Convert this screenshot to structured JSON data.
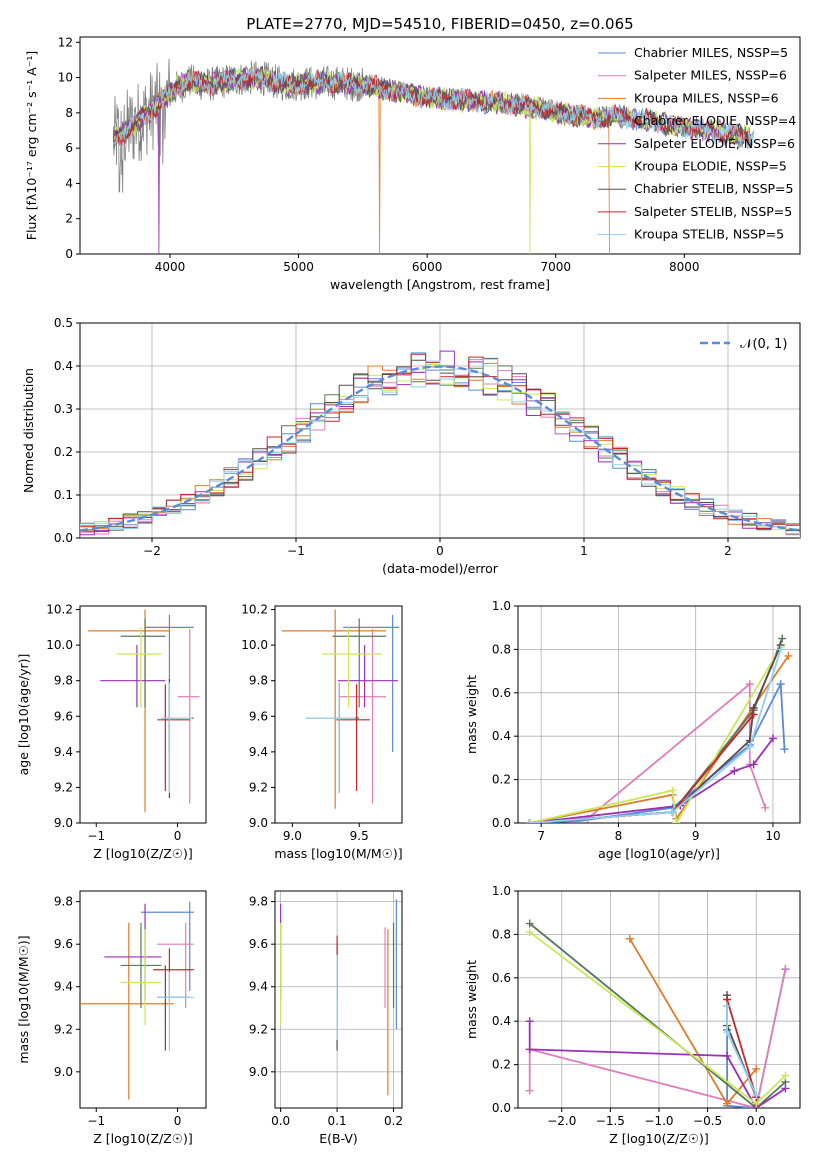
{
  "colors": [
    "#5b8ad8",
    "#e07eb8",
    "#e07b2a",
    "#56785b",
    "#9a2fb8",
    "#c8e85a",
    "#5a4a4a",
    "#c4262b",
    "#8fd0ee"
  ],
  "top_spectrum": {
    "title": "PLATE=2770, MJD=54510, FIBERID=0450, z=0.065",
    "xlabel": "wavelength [Angstrom, rest frame]",
    "ylabel": "Flux [fλ10⁻¹⁷ erg cm⁻² s⁻¹ A⁻¹]",
    "legend": [
      "Chabrier MILES, NSSP=5",
      "Salpeter MILES, NSSP=6",
      "Kroupa MILES, NSSP=6",
      "Chabrier ELODIE, NSSP=4",
      "Salpeter ELODIE, NSSP=6",
      "Kroupa ELODIE, NSSP=5",
      "Chabrier STELIB, NSSP=5",
      "Salpeter STELIB, NSSP=5",
      "Kroupa STELIB, NSSP=5"
    ]
  },
  "chart_data": [
    {
      "type": "line",
      "title": "PLATE=2770, MJD=54510, FIBERID=0450, z=0.065",
      "xlabel": "wavelength [Angstrom, rest frame]",
      "ylabel": "Flux [fλ10⁻¹⁷ erg cm⁻² s⁻¹ A⁻¹]",
      "xlim": [
        3300,
        8900
      ],
      "ylim": [
        0,
        12.3
      ],
      "xticks": [
        4000,
        5000,
        6000,
        7000,
        8000
      ],
      "yticks": [
        0,
        2,
        4,
        6,
        8,
        10,
        12
      ],
      "continuum": {
        "x": [
          3560,
          3700,
          3850,
          3950,
          4050,
          4150,
          4300,
          4500,
          4700,
          4900,
          5100,
          5300,
          5500,
          5700,
          5900,
          6100,
          6300,
          6500,
          6700,
          6900,
          7100,
          7300,
          7500,
          7700,
          7900,
          8100,
          8300,
          8500
        ],
        "y": [
          6.5,
          7.2,
          8.1,
          8.8,
          9.4,
          9.8,
          9.6,
          9.9,
          10.0,
          9.6,
          9.7,
          9.7,
          9.6,
          9.3,
          9.0,
          8.8,
          8.7,
          8.6,
          8.5,
          8.2,
          7.9,
          7.7,
          7.8,
          7.6,
          7.3,
          7.1,
          6.9,
          6.6
        ]
      },
      "grid": false,
      "legend_position": "upper-right"
    },
    {
      "type": "step",
      "xlabel": "(data-model)/error",
      "ylabel": "Normed distribution",
      "xlim": [
        -2.5,
        2.5
      ],
      "ylim": [
        0,
        0.5
      ],
      "xticks": [
        -2,
        -1,
        0,
        1,
        2
      ],
      "yticks": [
        0.0,
        0.1,
        0.2,
        0.3,
        0.4,
        0.5
      ],
      "grid": true,
      "legend": "𝒩(0, 1)",
      "legend_position": "upper-right",
      "bin_width": 0.1
    },
    {
      "type": "errorbar",
      "xlabel": "Z [log10(Z/Z☉)]",
      "ylabel": "age  [log10(age/yr)]",
      "xlim": [
        -1.2,
        0.35
      ],
      "ylim": [
        9.0,
        10.22
      ],
      "xticks": [
        -1,
        0
      ],
      "yticks": [
        9.0,
        9.2,
        9.4,
        9.6,
        9.8,
        10.0,
        10.2
      ],
      "points": [
        {
          "x": -0.1,
          "y": 10.1,
          "xerr": [
            0.3,
            0.3
          ],
          "yerr": [
            0.7,
            0.07
          ]
        },
        {
          "x": 0.15,
          "y": 9.71,
          "xerr": [
            0.15,
            0.12
          ],
          "yerr": [
            0.6,
            0.38
          ]
        },
        {
          "x": -0.4,
          "y": 10.08,
          "xerr": [
            0.7,
            0.3
          ],
          "yerr": [
            1.02,
            0.12
          ]
        },
        {
          "x": -0.4,
          "y": 10.05,
          "xerr": [
            0.3,
            0.25
          ],
          "yerr": [
            0.4,
            0.1
          ]
        },
        {
          "x": -0.5,
          "y": 9.8,
          "xerr": [
            0.45,
            0.35
          ],
          "yerr": [
            0.15,
            0.2
          ]
        },
        {
          "x": -0.45,
          "y": 9.95,
          "xerr": [
            0.3,
            0.25
          ],
          "yerr": [
            0.3,
            0.15
          ]
        },
        {
          "x": -0.1,
          "y": 9.59,
          "xerr": [
            0.1,
            0.3
          ],
          "yerr": [
            0.45,
            0.22
          ]
        },
        {
          "x": -0.15,
          "y": 9.58,
          "xerr": [
            0.1,
            0.3
          ],
          "yerr": [
            0.4,
            0.2
          ]
        },
        {
          "x": -0.1,
          "y": 9.59,
          "xerr": [
            0.1,
            0.28
          ],
          "yerr": [
            0.42,
            0.2
          ]
        }
      ]
    },
    {
      "type": "errorbar",
      "xlabel": "mass [log10(M/M☉)]",
      "ylabel": "",
      "xlim": [
        8.87,
        9.82
      ],
      "ylim": [
        9.0,
        10.22
      ],
      "xticks": [
        9.0,
        9.5
      ],
      "yticks": [
        9.0,
        9.2,
        9.4,
        9.6,
        9.8,
        10.0,
        10.2
      ],
      "points": [
        {
          "x": 9.75,
          "y": 10.1,
          "xerr": [
            0.37,
            0.05
          ],
          "yerr": [
            0.7,
            0.07
          ]
        },
        {
          "x": 9.6,
          "y": 9.71,
          "xerr": [
            0.25,
            0.1
          ],
          "yerr": [
            0.6,
            0.38
          ]
        },
        {
          "x": 9.32,
          "y": 10.08,
          "xerr": [
            0.4,
            0.38
          ],
          "yerr": [
            1.0,
            0.12
          ]
        },
        {
          "x": 9.5,
          "y": 10.05,
          "xerr": [
            0.2,
            0.2
          ],
          "yerr": [
            0.4,
            0.1
          ]
        },
        {
          "x": 9.54,
          "y": 9.8,
          "xerr": [
            0.2,
            0.25
          ],
          "yerr": [
            0.15,
            0.2
          ]
        },
        {
          "x": 9.42,
          "y": 9.95,
          "xerr": [
            0.2,
            0.25
          ],
          "yerr": [
            0.3,
            0.15
          ]
        },
        {
          "x": 9.35,
          "y": 9.59,
          "xerr": [
            0.25,
            0.15
          ],
          "yerr": [
            0.42,
            0.2
          ]
        },
        {
          "x": 9.48,
          "y": 9.58,
          "xerr": [
            0.15,
            0.1
          ],
          "yerr": [
            0.4,
            0.2
          ]
        },
        {
          "x": 9.35,
          "y": 9.59,
          "xerr": [
            0.25,
            0.12
          ],
          "yerr": [
            0.42,
            0.2
          ]
        }
      ]
    },
    {
      "type": "line",
      "xlabel": "age  [log10(age/yr)]",
      "ylabel": "mass weight",
      "xlim": [
        6.7,
        10.35
      ],
      "ylim": [
        0,
        1.0
      ],
      "xticks": [
        7,
        8,
        9,
        10
      ],
      "yticks": [
        0.0,
        0.2,
        0.4,
        0.6,
        0.8,
        1.0
      ],
      "grid": true,
      "series": [
        {
          "x": [
            6.85,
            7.5,
            8.7,
            9.7,
            10.1,
            10.15
          ],
          "y": [
            0.0,
            0.01,
            0.07,
            0.36,
            0.64,
            0.34
          ]
        },
        {
          "x": [
            6.85,
            7.6,
            9.7,
            9.7,
            9.9
          ],
          "y": [
            0.0,
            0.02,
            0.64,
            0.27,
            0.07
          ]
        },
        {
          "x": [
            6.85,
            8.7,
            8.75,
            10.2
          ],
          "y": [
            0.0,
            0.13,
            0.02,
            0.77
          ]
        },
        {
          "x": [
            6.85,
            8.7,
            9.75,
            10.12
          ],
          "y": [
            0.0,
            0.05,
            0.52,
            0.85
          ]
        },
        {
          "x": [
            6.85,
            8.8,
            9.5,
            9.75,
            10.0
          ],
          "y": [
            0.0,
            0.08,
            0.24,
            0.27,
            0.39
          ]
        },
        {
          "x": [
            6.85,
            8.7,
            8.75,
            10.1
          ],
          "y": [
            0.0,
            0.15,
            0.0,
            0.81
          ]
        },
        {
          "x": [
            6.85,
            8.7,
            9.7,
            9.75,
            10.1
          ],
          "y": [
            0.0,
            0.05,
            0.38,
            0.53,
            0.82
          ]
        },
        {
          "x": [
            6.85,
            8.7,
            9.75
          ],
          "y": [
            0.0,
            0.05,
            0.5
          ]
        },
        {
          "x": [
            6.85,
            8.7,
            9.7,
            10.1
          ],
          "y": [
            0.0,
            0.05,
            0.35,
            0.8
          ]
        }
      ]
    },
    {
      "type": "errorbar",
      "xlabel": "Z [log10(Z/Z☉)]",
      "ylabel": "mass [log10(M/M☉)]",
      "xlim": [
        -1.2,
        0.35
      ],
      "ylim": [
        8.83,
        9.85
      ],
      "xticks": [
        -1,
        0
      ],
      "yticks": [
        9.0,
        9.2,
        9.4,
        9.6,
        9.8
      ],
      "points": [
        {
          "x": 0.15,
          "y": 9.75,
          "xerr": [
            0.6,
            0.05
          ],
          "yerr": [
            0.37,
            0.05
          ]
        },
        {
          "x": 0.1,
          "y": 9.6,
          "xerr": [
            0.35,
            0.1
          ],
          "yerr": [
            0.3,
            0.1
          ]
        },
        {
          "x": -0.6,
          "y": 9.32,
          "xerr": [
            0.6,
            0.55
          ],
          "yerr": [
            0.45,
            0.38
          ]
        },
        {
          "x": -0.45,
          "y": 9.5,
          "xerr": [
            0.25,
            0.25
          ],
          "yerr": [
            0.2,
            0.2
          ]
        },
        {
          "x": -0.4,
          "y": 9.54,
          "xerr": [
            0.5,
            0.2
          ],
          "yerr": [
            0.2,
            0.25
          ]
        },
        {
          "x": -0.4,
          "y": 9.42,
          "xerr": [
            0.3,
            0.2
          ],
          "yerr": [
            0.2,
            0.25
          ]
        },
        {
          "x": -0.15,
          "y": 9.35,
          "xerr": [
            0.1,
            0.3
          ],
          "yerr": [
            0.25,
            0.15
          ]
        },
        {
          "x": -0.1,
          "y": 9.48,
          "xerr": [
            0.2,
            0.3
          ],
          "yerr": [
            0.15,
            0.1
          ]
        },
        {
          "x": -0.1,
          "y": 9.35,
          "xerr": [
            0.15,
            0.3
          ],
          "yerr": [
            0.25,
            0.12
          ]
        }
      ]
    },
    {
      "type": "errorbar",
      "xlabel": "E(B-V)",
      "ylabel": "",
      "xlim": [
        -0.01,
        0.215
      ],
      "ylim": [
        8.83,
        9.85
      ],
      "xticks": [
        0.0,
        0.1,
        0.2
      ],
      "yticks": [
        9.0,
        9.2,
        9.4,
        9.6,
        9.8
      ],
      "grid": true,
      "points": [
        {
          "x": 0.205,
          "y": 9.75,
          "yerr": [
            0.55,
            0.06
          ]
        },
        {
          "x": 0.185,
          "y": 9.6,
          "yerr": [
            0.3,
            0.08
          ]
        },
        {
          "x": 0.19,
          "y": 9.32,
          "yerr": [
            0.43,
            0.35
          ]
        },
        {
          "x": 0.2,
          "y": 9.5,
          "yerr": [
            0.2,
            0.2
          ]
        },
        {
          "x": 0.0,
          "y": 9.54,
          "yerr": [
            0.2,
            0.25
          ]
        },
        {
          "x": 0.0,
          "y": 9.42,
          "yerr": [
            0.2,
            0.28
          ]
        },
        {
          "x": 0.1,
          "y": 9.35,
          "yerr": [
            0.25,
            0.25
          ]
        },
        {
          "x": 0.1,
          "y": 9.48,
          "yerr": [
            0.15,
            0.16
          ]
        },
        {
          "x": 0.1,
          "y": 9.35,
          "yerr": [
            0.2,
            0.2
          ]
        }
      ]
    },
    {
      "type": "line",
      "xlabel": "Z [log10(Z/Z☉)]",
      "ylabel": "mass weight",
      "xlim": [
        -2.45,
        0.45
      ],
      "ylim": [
        0,
        1.0
      ],
      "xticks": [
        -2.0,
        -1.5,
        -1.0,
        -0.5,
        0.0
      ],
      "yticks": [
        0.0,
        0.2,
        0.4,
        0.6,
        0.8,
        1.0
      ],
      "grid": true,
      "series": [
        {
          "x": [
            -0.3,
            -0.3,
            0.0,
            0.3
          ],
          "y": [
            0.36,
            0.01,
            0.0,
            0.64
          ]
        },
        {
          "x": [
            -2.33,
            -2.33,
            0.0,
            0.3
          ],
          "y": [
            0.08,
            0.27,
            0.0,
            0.64
          ]
        },
        {
          "x": [
            -1.3,
            -0.3,
            0.0
          ],
          "y": [
            0.78,
            0.02,
            0.18
          ]
        },
        {
          "x": [
            -2.33,
            0.0,
            0.3
          ],
          "y": [
            0.85,
            0.0,
            0.12
          ]
        },
        {
          "x": [
            -2.33,
            -2.33,
            -0.3,
            0.0,
            0.3
          ],
          "y": [
            0.4,
            0.27,
            0.24,
            0.0,
            0.09
          ]
        },
        {
          "x": [
            -2.33,
            0.0,
            0.3
          ],
          "y": [
            0.81,
            0.02,
            0.15
          ]
        },
        {
          "x": [
            -0.3,
            -0.3,
            0.0
          ],
          "y": [
            0.52,
            0.38,
            0.05
          ]
        },
        {
          "x": [
            -0.3,
            0.0
          ],
          "y": [
            0.5,
            0.05
          ]
        },
        {
          "x": [
            -0.3,
            -0.3,
            0.0
          ],
          "y": [
            0.47,
            0.35,
            0.06
          ]
        }
      ]
    }
  ]
}
